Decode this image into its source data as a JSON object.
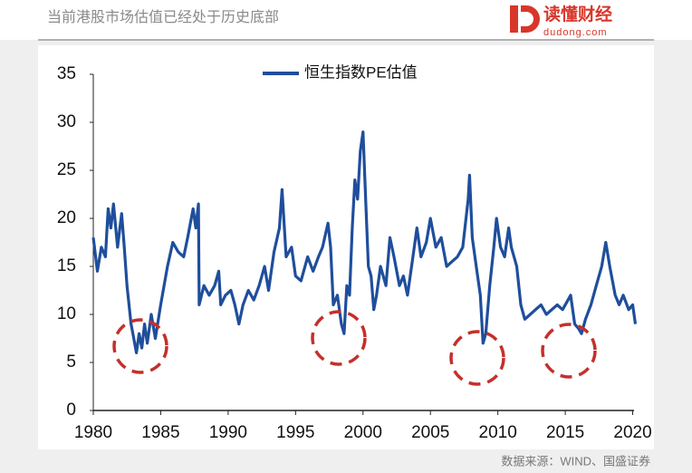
{
  "header": {
    "title": "当前港股市场估值已经处于历史底部",
    "logo": "读懂财经",
    "logo_url": "dudong.com"
  },
  "source": "数据来源：WIND、国盛证券",
  "chart_data": {
    "type": "line",
    "series": [
      {
        "name": "恒生指数PE估值",
        "color": "#1f4e9c",
        "x": [
          1980.0,
          1980.3,
          1980.6,
          1980.9,
          1981.1,
          1981.3,
          1981.5,
          1981.8,
          1982.1,
          1982.3,
          1982.5,
          1982.8,
          1983.0,
          1983.2,
          1983.4,
          1983.6,
          1983.8,
          1984.0,
          1984.3,
          1984.6,
          1985.0,
          1985.5,
          1985.9,
          1986.3,
          1986.7,
          1987.0,
          1987.4,
          1987.6,
          1987.8,
          1987.85,
          1988.2,
          1988.6,
          1989.0,
          1989.3,
          1989.45,
          1989.8,
          1990.2,
          1990.5,
          1990.8,
          1991.1,
          1991.5,
          1991.9,
          1992.3,
          1992.7,
          1993.0,
          1993.4,
          1993.8,
          1994.0,
          1994.3,
          1994.7,
          1995.0,
          1995.4,
          1995.9,
          1996.3,
          1996.7,
          1997.0,
          1997.4,
          1997.6,
          1997.8,
          1998.1,
          1998.4,
          1998.6,
          1998.8,
          1999.0,
          1999.2,
          1999.4,
          1999.6,
          1999.8,
          2000.0,
          2000.2,
          2000.4,
          2000.6,
          2000.8,
          2001.0,
          2001.3,
          2001.7,
          2002.0,
          2002.3,
          2002.7,
          2003.0,
          2003.3,
          2003.7,
          2004.0,
          2004.3,
          2004.7,
          2005.0,
          2005.4,
          2005.8,
          2006.2,
          2006.6,
          2007.0,
          2007.4,
          2007.8,
          2007.9,
          2008.1,
          2008.4,
          2008.7,
          2008.9,
          2009.1,
          2009.4,
          2009.7,
          2009.9,
          2010.2,
          2010.5,
          2010.8,
          2011.0,
          2011.4,
          2011.7,
          2012.0,
          2012.4,
          2012.8,
          2013.2,
          2013.6,
          2014.0,
          2014.4,
          2014.8,
          2015.2,
          2015.4,
          2015.7,
          2016.0,
          2016.2,
          2016.5,
          2016.9,
          2017.3,
          2017.7,
          2018.0,
          2018.3,
          2018.7,
          2019.0,
          2019.3,
          2019.7,
          2020.0,
          2020.2
        ],
        "values": [
          18,
          14.5,
          17,
          16,
          21,
          19,
          21.5,
          17,
          20.5,
          17,
          13,
          9,
          7.5,
          6,
          8,
          6.5,
          9,
          7,
          10,
          7.5,
          11,
          15,
          17.5,
          16.5,
          16,
          18,
          21,
          19,
          21.5,
          11,
          13,
          12,
          13,
          14.5,
          11,
          12,
          12.5,
          11,
          9,
          11,
          12.5,
          11.5,
          13,
          15,
          12.5,
          16.5,
          19,
          23,
          16,
          17,
          14,
          13.5,
          16,
          14.5,
          16,
          17,
          19.5,
          17,
          11,
          12,
          9,
          8,
          13,
          12,
          19,
          24,
          22,
          27,
          29,
          22,
          15,
          14,
          10.5,
          12,
          15,
          13,
          18,
          16,
          13,
          14,
          12,
          16,
          19,
          16,
          17.5,
          20,
          17,
          18,
          15,
          15.5,
          16,
          17,
          22,
          24.5,
          18,
          15,
          12,
          7,
          8,
          13,
          17,
          20,
          17,
          16,
          19,
          17,
          15,
          11,
          9.5,
          10,
          10.5,
          11,
          10,
          10.5,
          11,
          10.5,
          11.5,
          12,
          9,
          8.5,
          8,
          9.5,
          11,
          13,
          15,
          17.5,
          15,
          12,
          11,
          12,
          10.5,
          11,
          9
        ]
      }
    ],
    "xlim": [
      1980,
      2020.3
    ],
    "xticks": [
      1980,
      1985,
      1990,
      1995,
      2000,
      2005,
      2010,
      2015,
      2020
    ],
    "ylim": [
      0,
      35
    ],
    "yticks": [
      0,
      5,
      10,
      15,
      20,
      25,
      30,
      35
    ],
    "legend": "top"
  }
}
